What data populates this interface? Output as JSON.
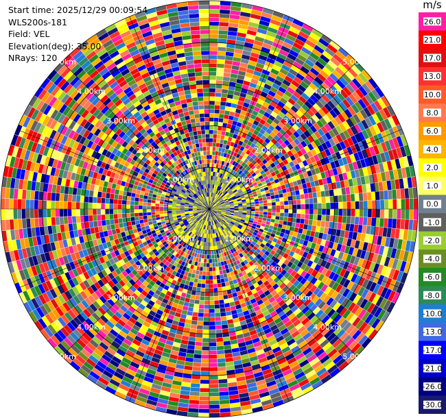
{
  "header": {
    "start_time": "Start time: 2025/12/29 00:09:54",
    "instrument": "WLS200s-181",
    "field": "Field: VEL",
    "elevation": "Elevation(deg): 35.00",
    "nrays": "NRays: 120"
  },
  "chart_data": {
    "type": "heatmap",
    "projection": "polar-ppi",
    "field": "VEL",
    "units": "m/s",
    "elevation_deg": 35.0,
    "n_rays": 120,
    "range_km": [
      0,
      5.0
    ],
    "range_rings_km": [
      1.0,
      2.0,
      3.0,
      4.0,
      5.0
    ],
    "range_ring_labels": [
      "1.00km",
      "2.00km",
      "3.00km",
      "4.00km",
      "5.00km"
    ],
    "spokes": 16,
    "colorbar": {
      "tick_labels": [
        "26.0",
        "21.0",
        "17.0",
        "13.0",
        "10.0",
        "8.0",
        "6.0",
        "4.0",
        "2.0",
        "1.0",
        "0.0",
        "-1.0",
        "-2.0",
        "-4.0",
        "-6.0",
        "-8.0",
        "-10.0",
        "-13.0",
        "-17.0",
        "-21.0",
        "-26.0",
        "-30.0"
      ],
      "colors": [
        "#ff1fa6",
        "#ff0000",
        "#e01010",
        "#ff3030",
        "#ff5a2a",
        "#ff7a50",
        "#ff9a00",
        "#ffb400",
        "#ffff00",
        "#ffff66",
        "#708090",
        "#606060",
        "#9acd32",
        "#6b8e23",
        "#228b22",
        "#2e8b57",
        "#1e7fd0",
        "#4169e1",
        "#0000ff",
        "#0000cd",
        "#000080",
        "#191970"
      ]
    },
    "inner_region_km": 1.0,
    "inner_colors": [
      "#808080",
      "#909090",
      "#9acd32",
      "#ffff00",
      "#ffe600",
      "#0000cd",
      "#708090"
    ]
  }
}
